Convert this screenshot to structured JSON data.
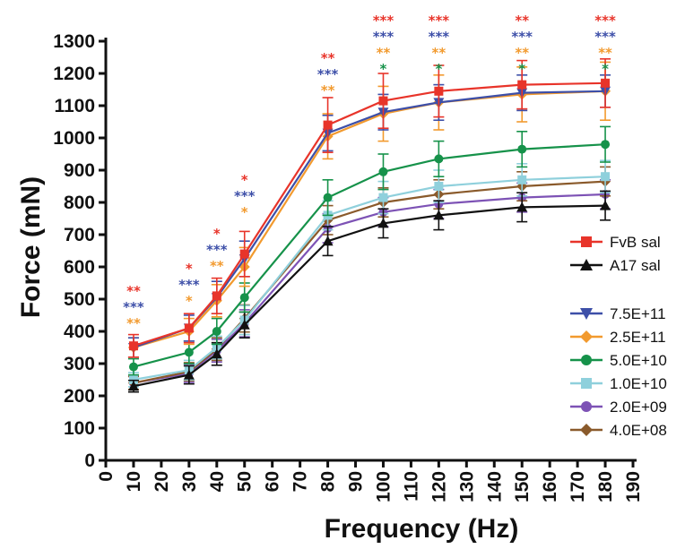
{
  "chart_data": {
    "type": "line",
    "xlabel": "Frequency (Hz)",
    "ylabel": "Force (mN)",
    "xlim": [
      0,
      190
    ],
    "ylim": [
      0,
      1300
    ],
    "xticks": [
      0,
      10,
      20,
      30,
      40,
      50,
      60,
      70,
      80,
      90,
      100,
      110,
      120,
      130,
      140,
      150,
      160,
      170,
      180,
      190
    ],
    "yticks": [
      0,
      100,
      200,
      300,
      400,
      500,
      600,
      700,
      800,
      900,
      1000,
      1100,
      1200,
      1300
    ],
    "x": [
      10,
      30,
      40,
      50,
      80,
      100,
      120,
      150,
      180
    ],
    "series": [
      {
        "name": "FvB sal",
        "color": "#e8342a",
        "marker": "square",
        "values": [
          355,
          410,
          510,
          640,
          1040,
          1115,
          1145,
          1165,
          1170
        ],
        "errors": [
          35,
          45,
          55,
          70,
          85,
          85,
          80,
          75,
          75
        ]
      },
      {
        "name": "A17 sal",
        "color": "#111111",
        "marker": "triangle-up",
        "values": [
          230,
          265,
          330,
          420,
          680,
          735,
          760,
          785,
          790
        ],
        "errors": [
          18,
          28,
          35,
          40,
          45,
          45,
          45,
          45,
          45
        ]
      },
      {
        "name": "7.5E+11",
        "color": "#3d4fa8",
        "marker": "triangle-down",
        "values": [
          350,
          410,
          505,
          625,
          1015,
          1080,
          1110,
          1140,
          1145
        ],
        "errors": [
          30,
          40,
          50,
          55,
          55,
          55,
          55,
          55,
          50
        ]
      },
      {
        "name": "2.5E+11",
        "color": "#f29a2e",
        "marker": "diamond",
        "values": [
          350,
          400,
          495,
          600,
          1005,
          1075,
          1110,
          1135,
          1145
        ],
        "errors": [
          30,
          40,
          50,
          60,
          70,
          85,
          85,
          85,
          90
        ]
      },
      {
        "name": "5.0E+10",
        "color": "#16924a",
        "marker": "circle",
        "values": [
          290,
          335,
          400,
          505,
          815,
          895,
          935,
          965,
          980
        ],
        "errors": [
          25,
          35,
          40,
          45,
          55,
          55,
          55,
          55,
          55
        ]
      },
      {
        "name": "1.0E+10",
        "color": "#8fd0dc",
        "marker": "square",
        "values": [
          250,
          280,
          350,
          435,
          760,
          815,
          850,
          870,
          880
        ],
        "errors": [
          22,
          30,
          35,
          45,
          45,
          50,
          50,
          50,
          50
        ]
      },
      {
        "name": "2.0E+09",
        "color": "#7d52b5",
        "marker": "circle",
        "values": [
          240,
          270,
          340,
          425,
          720,
          770,
          795,
          815,
          825
        ],
        "errors": [
          20,
          28,
          35,
          42,
          45,
          45,
          45,
          45,
          45
        ]
      },
      {
        "name": "4.0E+08",
        "color": "#8a5a2b",
        "marker": "diamond",
        "values": [
          240,
          275,
          345,
          440,
          745,
          800,
          825,
          850,
          865
        ],
        "errors": [
          20,
          28,
          35,
          42,
          45,
          45,
          45,
          45,
          45
        ]
      }
    ],
    "annotations": [
      {
        "x": 10,
        "lines": [
          {
            "text": "**",
            "color": "#e8342a"
          },
          {
            "text": "***",
            "color": "#3d4fa8"
          },
          {
            "text": "**",
            "color": "#f29a2e"
          }
        ]
      },
      {
        "x": 30,
        "lines": [
          {
            "text": "*",
            "color": "#e8342a"
          },
          {
            "text": "***",
            "color": "#3d4fa8"
          },
          {
            "text": "*",
            "color": "#f29a2e"
          }
        ]
      },
      {
        "x": 40,
        "lines": [
          {
            "text": "*",
            "color": "#e8342a"
          },
          {
            "text": "***",
            "color": "#3d4fa8"
          },
          {
            "text": "**",
            "color": "#f29a2e"
          }
        ]
      },
      {
        "x": 50,
        "lines": [
          {
            "text": "*",
            "color": "#e8342a"
          },
          {
            "text": "***",
            "color": "#3d4fa8"
          },
          {
            "text": "*",
            "color": "#f29a2e"
          }
        ]
      },
      {
        "x": 80,
        "lines": [
          {
            "text": "**",
            "color": "#e8342a"
          },
          {
            "text": "***",
            "color": "#3d4fa8"
          },
          {
            "text": "**",
            "color": "#f29a2e"
          }
        ]
      },
      {
        "x": 100,
        "lines": [
          {
            "text": "***",
            "color": "#e8342a"
          },
          {
            "text": "***",
            "color": "#3d4fa8"
          },
          {
            "text": "**",
            "color": "#f29a2e"
          },
          {
            "text": "*",
            "color": "#16924a"
          }
        ]
      },
      {
        "x": 120,
        "lines": [
          {
            "text": "***",
            "color": "#e8342a"
          },
          {
            "text": "***",
            "color": "#3d4fa8"
          },
          {
            "text": "**",
            "color": "#f29a2e"
          },
          {
            "text": "*",
            "color": "#16924a"
          }
        ]
      },
      {
        "x": 150,
        "lines": [
          {
            "text": "**",
            "color": "#e8342a"
          },
          {
            "text": "***",
            "color": "#3d4fa8"
          },
          {
            "text": "**",
            "color": "#f29a2e"
          },
          {
            "text": "*",
            "color": "#16924a"
          }
        ]
      },
      {
        "x": 180,
        "lines": [
          {
            "text": "***",
            "color": "#e8342a"
          },
          {
            "text": "***",
            "color": "#3d4fa8"
          },
          {
            "text": "**",
            "color": "#f29a2e"
          },
          {
            "text": "*",
            "color": "#16924a"
          }
        ]
      }
    ],
    "legend_groups": [
      [
        "FvB sal",
        "A17 sal"
      ],
      [
        "7.5E+11",
        "2.5E+11",
        "5.0E+10",
        "1.0E+10",
        "2.0E+09",
        "4.0E+08"
      ]
    ],
    "legend_position": "right",
    "grid": false
  }
}
